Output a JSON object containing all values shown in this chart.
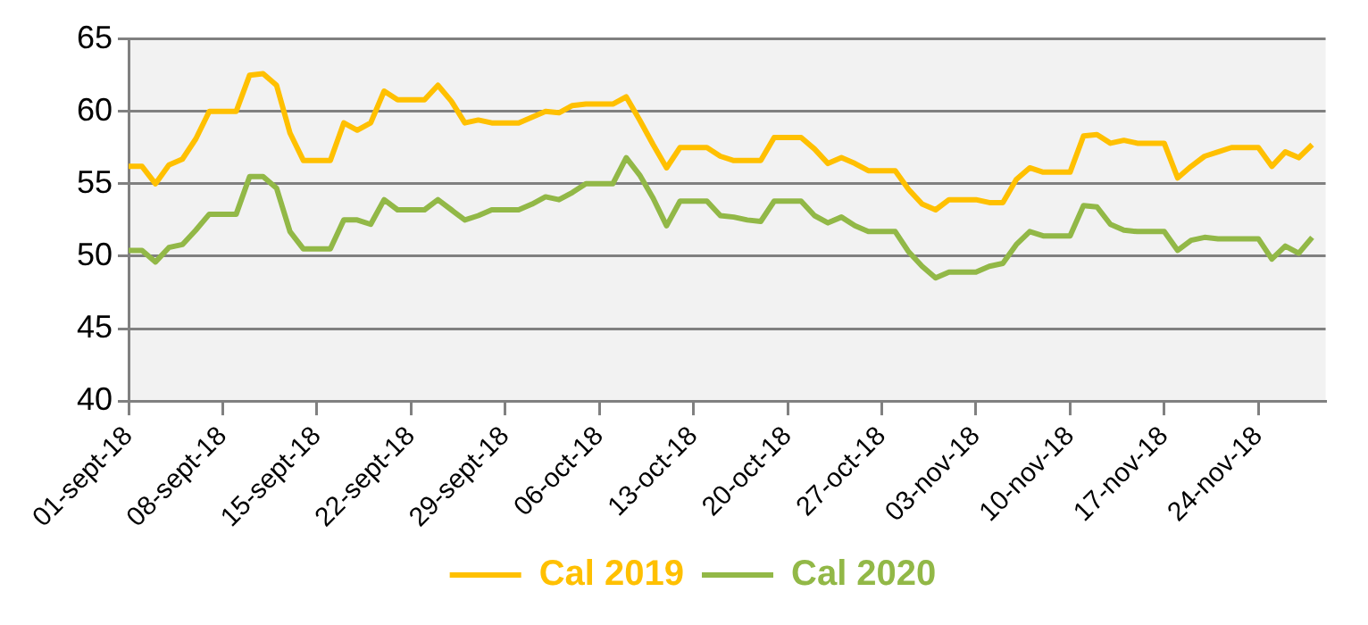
{
  "chart_data": {
    "type": "line",
    "categories": [
      "01-sept-18",
      null,
      null,
      null,
      null,
      null,
      null,
      "08-sept-18",
      null,
      null,
      null,
      null,
      null,
      null,
      "15-sept-18",
      null,
      null,
      null,
      null,
      null,
      null,
      "22-sept-18",
      null,
      null,
      null,
      null,
      null,
      null,
      "29-sept-18",
      null,
      null,
      null,
      null,
      null,
      null,
      "06-oct-18",
      null,
      null,
      null,
      null,
      null,
      null,
      "13-oct-18",
      null,
      null,
      null,
      null,
      null,
      null,
      "20-oct-18",
      null,
      null,
      null,
      null,
      null,
      null,
      "27-oct-18",
      null,
      null,
      null,
      null,
      null,
      null,
      "03-nov-18",
      null,
      null,
      null,
      null,
      null,
      null,
      "10-nov-18",
      null,
      null,
      null,
      null,
      null,
      null,
      "17-nov-18",
      null,
      null,
      null,
      null,
      null,
      null,
      "24-nov-18",
      null,
      null,
      null,
      null,
      null
    ],
    "series": [
      {
        "name": "Cal 2019",
        "color": "#ffc000",
        "values": [
          56.2,
          56.2,
          55.0,
          56.3,
          56.7,
          58.1,
          60.0,
          60.0,
          60.0,
          62.5,
          62.6,
          61.8,
          58.5,
          56.6,
          56.6,
          56.6,
          59.2,
          58.7,
          59.2,
          61.4,
          60.8,
          60.8,
          60.8,
          61.8,
          60.7,
          59.2,
          59.4,
          59.2,
          59.2,
          59.2,
          59.6,
          60.0,
          59.9,
          60.4,
          60.5,
          60.5,
          60.5,
          61.0,
          59.4,
          57.7,
          56.1,
          57.5,
          57.5,
          57.5,
          56.9,
          56.6,
          56.6,
          56.6,
          58.2,
          58.2,
          58.2,
          57.4,
          56.4,
          56.8,
          56.4,
          55.9,
          55.9,
          55.9,
          54.6,
          53.6,
          53.2,
          53.9,
          53.9,
          53.9,
          53.7,
          53.7,
          55.3,
          56.1,
          55.8,
          55.8,
          55.8,
          58.3,
          58.4,
          57.8,
          58.0,
          57.8,
          57.8,
          57.8,
          55.4,
          56.2,
          56.9,
          57.2,
          57.5,
          57.5,
          57.5,
          56.2,
          57.2,
          56.8,
          57.7,
          null
        ]
      },
      {
        "name": "Cal 2020",
        "color": "#92b847",
        "values": [
          50.4,
          50.4,
          49.6,
          50.6,
          50.8,
          51.8,
          52.9,
          52.9,
          52.9,
          55.5,
          55.5,
          54.7,
          51.7,
          50.5,
          50.5,
          50.5,
          52.5,
          52.5,
          52.2,
          53.9,
          53.2,
          53.2,
          53.2,
          53.9,
          53.2,
          52.5,
          52.8,
          53.2,
          53.2,
          53.2,
          53.6,
          54.1,
          53.9,
          54.4,
          55.0,
          55.0,
          55.0,
          56.8,
          55.6,
          54.0,
          52.1,
          53.8,
          53.8,
          53.8,
          52.8,
          52.7,
          52.5,
          52.4,
          53.8,
          53.8,
          53.8,
          52.8,
          52.3,
          52.7,
          52.1,
          51.7,
          51.7,
          51.7,
          50.3,
          49.3,
          48.5,
          48.9,
          48.9,
          48.9,
          49.3,
          49.5,
          50.8,
          51.7,
          51.4,
          51.4,
          51.4,
          53.5,
          53.4,
          52.2,
          51.8,
          51.7,
          51.7,
          51.7,
          50.4,
          51.1,
          51.3,
          51.2,
          51.2,
          51.2,
          51.2,
          49.8,
          50.7,
          50.2,
          51.3,
          null
        ]
      }
    ],
    "ylim": [
      40,
      65
    ],
    "yticks": [
      40,
      45,
      50,
      55,
      60,
      65
    ],
    "grid": "y",
    "legend": "bottom",
    "marker": "none",
    "line_style": "solid"
  }
}
